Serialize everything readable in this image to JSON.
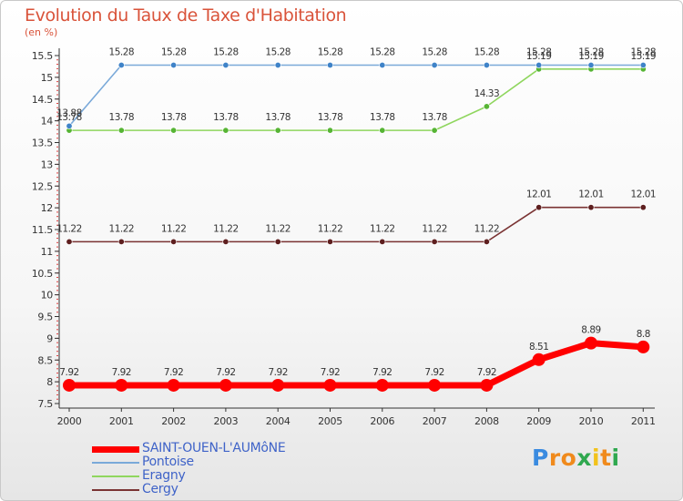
{
  "header": {
    "title": "Evolution du Taux de Taxe d'Habitation",
    "unit": "(en %)"
  },
  "brand": {
    "letters": [
      "P",
      "r",
      "o",
      "x",
      "i",
      "t",
      "i"
    ],
    "colors": [
      "#3a8be0",
      "#f08a1c",
      "#f08a1c",
      "#2fa84f",
      "#f2c21b",
      "#f08a1c",
      "#2fa84f"
    ]
  },
  "chart_data": {
    "type": "line",
    "title": "Evolution du Taux de Taxe d'Habitation",
    "ylabel": "(en %)",
    "xlabel": "",
    "categories": [
      "2000",
      "2001",
      "2002",
      "2003",
      "2004",
      "2005",
      "2006",
      "2007",
      "2008",
      "2009",
      "2010",
      "2011"
    ],
    "ylim": [
      7.5,
      15.5
    ],
    "yticks": [
      "7.5",
      "8",
      "8.5",
      "9",
      "9.5",
      "10",
      "10.5",
      "11",
      "11.5",
      "12",
      "12.5",
      "13",
      "13.5",
      "14",
      "14.5",
      "15",
      "15.5"
    ],
    "grid": false,
    "legend_position": "bottom-left",
    "series": [
      {
        "name": "SAINT-OUEN-L'AUMôNE",
        "color": "#ff0000",
        "marker_color": "#ff0000",
        "values": [
          7.92,
          7.92,
          7.92,
          7.92,
          7.92,
          7.92,
          7.92,
          7.92,
          7.92,
          8.51,
          8.89,
          8.8
        ],
        "labels": [
          "7.92",
          "7.92",
          "7.92",
          "7.92",
          "7.92",
          "7.92",
          "7.92",
          "7.92",
          "7.92",
          "8.51",
          "8.89",
          "8.8"
        ]
      },
      {
        "name": "Pontoise",
        "color": "#7aa9d9",
        "marker_color": "#3f83c8",
        "values": [
          13.88,
          15.28,
          15.28,
          15.28,
          15.28,
          15.28,
          15.28,
          15.28,
          15.28,
          15.28,
          15.28,
          15.28
        ],
        "labels": [
          "13.88",
          "15.28",
          "15.28",
          "15.28",
          "15.28",
          "15.28",
          "15.28",
          "15.28",
          "15.28",
          "15.28",
          "15.28",
          "15.28"
        ]
      },
      {
        "name": "Eragny",
        "color": "#8fd65e",
        "marker_color": "#56b434",
        "values": [
          13.78,
          13.78,
          13.78,
          13.78,
          13.78,
          13.78,
          13.78,
          13.78,
          14.33,
          15.19,
          15.19,
          15.19
        ],
        "labels": [
          "13.78",
          "13.78",
          "13.78",
          "13.78",
          "13.78",
          "13.78",
          "13.78",
          "13.78",
          "14.33",
          "15.19",
          "15.19",
          "15.19"
        ]
      },
      {
        "name": "Cergy",
        "color": "#7a3333",
        "marker_color": "#5e1f1f",
        "values": [
          11.22,
          11.22,
          11.22,
          11.22,
          11.22,
          11.22,
          11.22,
          11.22,
          11.22,
          12.01,
          12.01,
          12.01
        ],
        "labels": [
          "11.22",
          "11.22",
          "11.22",
          "11.22",
          "11.22",
          "11.22",
          "11.22",
          "11.22",
          "11.22",
          "12.01",
          "12.01",
          "12.01"
        ]
      }
    ]
  }
}
